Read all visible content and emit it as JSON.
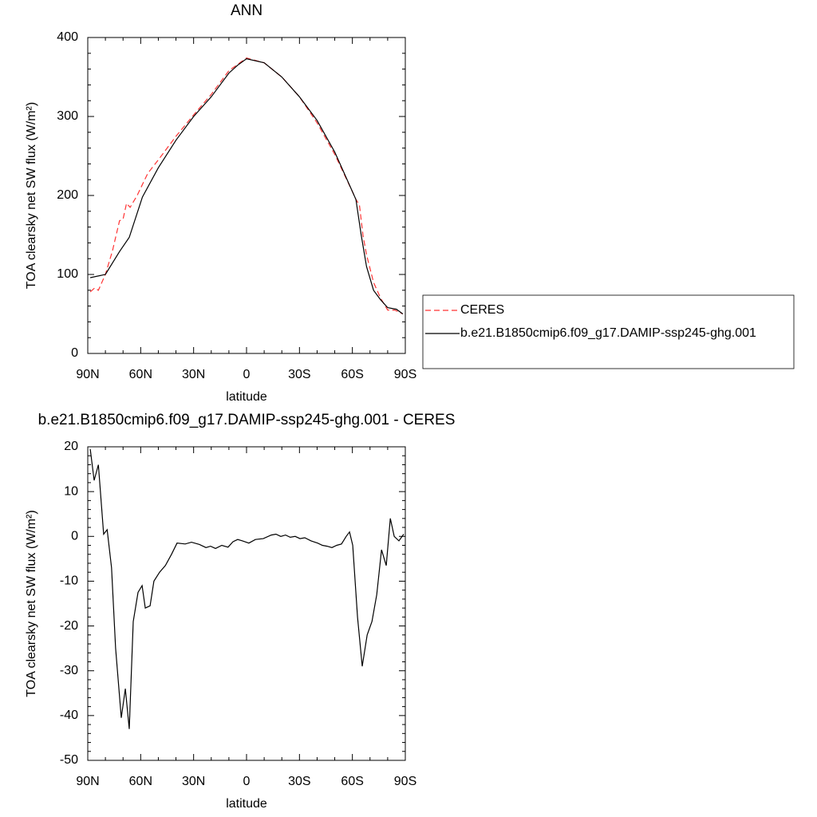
{
  "chart_data": [
    {
      "type": "line",
      "title": "ANN",
      "xlabel": "latitude",
      "ylabel": "TOA clearsky net SW flux (W/m²)",
      "xlim": [
        90,
        -90
      ],
      "ylim": [
        0,
        400
      ],
      "xticks": [
        {
          "value": 90,
          "label": "90N"
        },
        {
          "value": 60,
          "label": "60N"
        },
        {
          "value": 30,
          "label": "30N"
        },
        0,
        {
          "value": -30,
          "label": "30S"
        },
        {
          "value": -60,
          "label": "60S"
        },
        {
          "value": -90,
          "label": "90S"
        }
      ],
      "yticks": [
        0,
        100,
        200,
        300,
        400
      ],
      "legend": "outside-right",
      "series": [
        {
          "name": "CERES",
          "color": "#ff3333",
          "dashed": true,
          "x": [
            88.6,
            86,
            84,
            80,
            76,
            72,
            70,
            68,
            66,
            62,
            56,
            50,
            40,
            30,
            20,
            10,
            0,
            -10,
            -20,
            -30,
            -40,
            -50,
            -60,
            -62,
            -64,
            -66,
            -68,
            -72,
            -76,
            -80,
            -84,
            -88.6
          ],
          "values": [
            78,
            83,
            80,
            100,
            130,
            168,
            170,
            190,
            185,
            200,
            228,
            245,
            275,
            302,
            328,
            358,
            374,
            368,
            350,
            325,
            292,
            252,
            205,
            195,
            188,
            150,
            125,
            90,
            70,
            55,
            55,
            50
          ]
        },
        {
          "name": "b.e21.B1850cmip6.f09_g17.DAMIP-ssp245-ghg.001",
          "color": "#000000",
          "dashed": false,
          "x": [
            88.6,
            80,
            72,
            66.5,
            59,
            50,
            40,
            30,
            20,
            10,
            5,
            0,
            -10,
            -20,
            -30,
            -40,
            -50,
            -60,
            -62,
            -65,
            -68,
            -72,
            -76,
            -80,
            -85,
            -88.6
          ],
          "values": [
            96,
            100,
            129,
            147,
            198,
            235,
            270,
            300,
            325,
            355,
            365,
            373,
            368,
            350,
            325,
            295,
            255,
            205,
            195,
            150,
            110,
            80,
            68,
            58,
            56,
            50
          ]
        }
      ]
    },
    {
      "type": "line",
      "title": "b.e21.B1850cmip6.f09_g17.DAMIP-ssp245-ghg.001 - CERES",
      "xlabel": "latitude",
      "ylabel": "TOA clearsky net SW flux (W/m²)",
      "xlim": [
        90,
        -90
      ],
      "ylim": [
        -50,
        20
      ],
      "xticks": [
        {
          "value": 90,
          "label": "90N"
        },
        {
          "value": 60,
          "label": "60N"
        },
        {
          "value": 30,
          "label": "30N"
        },
        0,
        {
          "value": -30,
          "label": "30S"
        },
        {
          "value": -60,
          "label": "60S"
        },
        {
          "value": -90,
          "label": "90S"
        }
      ],
      "yticks": [
        -50,
        -40,
        -30,
        -20,
        -10,
        0,
        10,
        20
      ],
      "color": "#000000",
      "x": [
        88.6,
        86.4,
        84,
        81,
        79,
        76.5,
        74.2,
        71,
        68.7,
        66.5,
        64.2,
        61.5,
        59.2,
        57.4,
        54.7,
        52.5,
        49.3,
        46,
        42.5,
        39.4,
        34.8,
        31.2,
        26.7,
        23,
        20.4,
        17.6,
        14,
        10.5,
        7.7,
        5,
        2.3,
        -1.3,
        -5,
        -9.5,
        -14,
        -16.7,
        -19.4,
        -22.1,
        -24.8,
        -27.6,
        -30.3,
        -33,
        -36.6,
        -40.3,
        -43,
        -45.7,
        -48.4,
        -51.1,
        -53.8,
        -56.5,
        -58.4,
        -60.2,
        -62.9,
        -65.6,
        -68.4,
        -71.1,
        -73.8,
        -76.5,
        -79.2,
        -81.5,
        -83.7,
        -86.4,
        -89.1
      ],
      "values": [
        19.5,
        12.5,
        16,
        0.5,
        1.5,
        -7,
        -25,
        -40.5,
        -34,
        -43,
        -19,
        -12.5,
        -11,
        -16,
        -15.5,
        -10,
        -8,
        -6.5,
        -4,
        -1.5,
        -1.7,
        -1.3,
        -1.8,
        -2.5,
        -2.2,
        -2.7,
        -2,
        -2.4,
        -1.2,
        -0.7,
        -1,
        -1.5,
        -0.7,
        -0.5,
        0.3,
        0.5,
        0,
        0.3,
        -0.2,
        0,
        -0.5,
        -0.3,
        -1,
        -1.5,
        -2,
        -2.2,
        -2.5,
        -2,
        -1.7,
        0,
        1,
        -2,
        -18,
        -29,
        -22,
        -19,
        -13,
        -3,
        -6.5,
        4,
        0,
        -1,
        0.5
      ]
    }
  ]
}
